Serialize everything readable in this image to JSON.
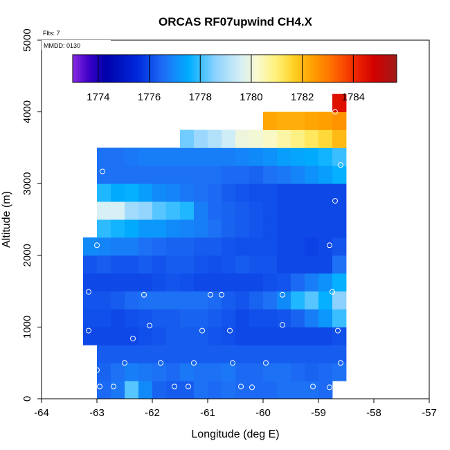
{
  "chart_data": {
    "type": "heatmap",
    "title": "ORCAS RF07upwind CH4.X",
    "flights_label": "Flts: 7",
    "mmdd_label": "MMDD: 0130",
    "xlabel": "Longitude (deg E)",
    "ylabel": "Altitude (m)",
    "xlim": [
      -64,
      -57
    ],
    "ylim": [
      0,
      5000
    ],
    "xticks": [
      -64,
      -63,
      -62,
      -61,
      -60,
      -59,
      -58,
      -57
    ],
    "yticks": [
      0,
      1000,
      2000,
      3000,
      4000,
      5000
    ],
    "colorbar": {
      "range": [
        1773,
        1785.7
      ],
      "ticks": [
        1774,
        1776,
        1778,
        1780,
        1782,
        1784
      ]
    },
    "grid": {
      "x0": -63.25,
      "dx": 0.25,
      "dy": 250,
      "rows": [
        {
          "y0": 0,
          "x0": -63.0,
          "values": [
            1776.5,
            1776.7,
            1778.2,
            1777.0,
            1776.4,
            1776.3,
            1776.3,
            1776.6,
            1776.5,
            1776.6,
            1776.5,
            1776.5,
            1776.5,
            1776.6,
            1776.6,
            1776.6,
            1776.5
          ]
        },
        {
          "y0": 250,
          "x0": -63.0,
          "values": [
            1776.4,
            1776.6,
            1776.8,
            1776.7,
            1776.6,
            1776.5,
            1776.7,
            1776.6,
            1776.6,
            1776.7,
            1776.5,
            1776.5,
            1776.6,
            1776.6,
            1776.5,
            1776.4,
            1776.5,
            1776.6
          ]
        },
        {
          "y0": 500,
          "x0": -63.0,
          "values": [
            1776.3,
            1776.3,
            1776.3,
            1776.3,
            1776.3,
            1776.3,
            1776.3,
            1776.3,
            1776.3,
            1776.3,
            1776.3,
            1776.3,
            1776.3,
            1776.3,
            1776.3,
            1776.3,
            1776.3,
            1776.3
          ]
        },
        {
          "y0": 750,
          "x0": -63.25,
          "values": [
            1776.0,
            1776.0,
            1776.0,
            1776.0,
            1776.1,
            1776.2,
            1776.3,
            1776.3,
            1776.3,
            1776.2,
            1776.1,
            1776.0,
            1776.0,
            1776.0,
            1776.0,
            1776.0,
            1776.0,
            1776.0,
            1776.1
          ]
        },
        {
          "y0": 1000,
          "x0": -63.25,
          "values": [
            1776.1,
            1776.1,
            1776.0,
            1776.1,
            1776.2,
            1776.3,
            1776.3,
            1776.4,
            1776.4,
            1776.3,
            1776.2,
            1776.0,
            1776.1,
            1776.1,
            1776.2,
            1776.4,
            1776.8,
            1777.2,
            1778.0
          ]
        },
        {
          "y0": 1250,
          "x0": -63.25,
          "values": [
            1776.2,
            1776.2,
            1776.3,
            1776.5,
            1776.6,
            1776.6,
            1776.6,
            1776.6,
            1776.6,
            1776.5,
            1776.3,
            1776.2,
            1776.4,
            1776.6,
            1777.0,
            1777.8,
            1778.2,
            1777.6,
            1778.6
          ]
        },
        {
          "y0": 1500,
          "x0": -63.25,
          "values": [
            1776.0,
            1776.0,
            1776.0,
            1776.0,
            1776.0,
            1776.1,
            1776.2,
            1776.1,
            1776.0,
            1776.0,
            1776.0,
            1776.0,
            1776.0,
            1776.1,
            1776.2,
            1776.5,
            1776.8,
            1777.1,
            1777.6
          ]
        },
        {
          "y0": 1750,
          "x0": -63.25,
          "values": [
            1776.2,
            1776.3,
            1776.2,
            1776.2,
            1776.3,
            1776.2,
            1776.3,
            1776.3,
            1776.2,
            1776.1,
            1776.2,
            1776.3,
            1776.2,
            1776.2,
            1776.0,
            1776.0,
            1776.0,
            1776.0,
            1776.6
          ]
        },
        {
          "y0": 2000,
          "x0": -63.25,
          "values": [
            1777.0,
            1776.9,
            1776.8,
            1776.8,
            1776.6,
            1776.5,
            1776.4,
            1776.4,
            1776.3,
            1776.3,
            1776.2,
            1776.1,
            1776.1,
            1776.1,
            1776.0,
            1776.0,
            1775.9,
            1776.0,
            1776.2
          ]
        },
        {
          "y0": 2250,
          "x0": -63.0,
          "values": [
            1777.9,
            1777.7,
            1777.5,
            1777.2,
            1777.2,
            1777.0,
            1776.9,
            1776.8,
            1776.6,
            1776.4,
            1776.3,
            1776.2,
            1776.1,
            1776.0,
            1776.0,
            1776.0,
            1776.0,
            1776.0
          ]
        },
        {
          "y0": 2500,
          "x0": -63.0,
          "values": [
            1779.6,
            1779.6,
            1778.9,
            1778.7,
            1778.2,
            1778.0,
            1777.8,
            1776.8,
            1776.5,
            1776.4,
            1776.3,
            1776.2,
            1776.1,
            1776.0,
            1776.0,
            1776.0,
            1776.0,
            1776.0
          ]
        },
        {
          "y0": 2750,
          "x0": -63.0,
          "values": [
            1777.8,
            1777.5,
            1777.6,
            1777.3,
            1777.0,
            1776.9,
            1776.7,
            1776.6,
            1776.5,
            1776.3,
            1776.2,
            1776.1,
            1776.1,
            1776.0,
            1776.0,
            1776.0,
            1776.0,
            1776.0
          ]
        },
        {
          "y0": 3000,
          "x0": -63.0,
          "values": [
            1776.6,
            1776.6,
            1776.6,
            1776.6,
            1776.6,
            1776.6,
            1776.6,
            1776.6,
            1776.6,
            1776.5,
            1776.5,
            1776.4,
            1776.6,
            1776.7,
            1776.9,
            1777.1,
            1777.3,
            1777.6
          ]
        },
        {
          "y0": 3250,
          "x0": -63.0,
          "values": [
            1776.6,
            1776.6,
            1776.7,
            1776.8,
            1776.8,
            1776.8,
            1776.8,
            1776.8,
            1776.8,
            1776.8,
            1776.9,
            1777.0,
            1777.1,
            1777.3,
            1777.4,
            1777.5,
            1777.7,
            1778.0
          ]
        },
        {
          "y0": 3500,
          "x0": -61.5,
          "values": [
            1778.4,
            1778.8,
            1779.1,
            1779.5,
            1780.0,
            1780.1,
            1780.3,
            1780.6,
            1780.9,
            1781.2,
            1781.5,
            1782.0
          ]
        },
        {
          "y0": 3750,
          "x0": -60.0,
          "values": [
            1782.3,
            1782.2,
            1782.2,
            1782.3,
            1782.4,
            1782.6
          ]
        },
        {
          "y0": 4000,
          "x0": -58.75,
          "values": [
            1784.5
          ]
        }
      ]
    },
    "points": [
      [
        -62.9,
        3170
      ],
      [
        -58.6,
        3260
      ],
      [
        -58.7,
        2760
      ],
      [
        -63.0,
        2140
      ],
      [
        -58.8,
        2140
      ],
      [
        -63.15,
        1490
      ],
      [
        -62.15,
        1450
      ],
      [
        -60.95,
        1450
      ],
      [
        -60.75,
        1450
      ],
      [
        -59.65,
        1450
      ],
      [
        -58.75,
        1490
      ],
      [
        -62.05,
        1020
      ],
      [
        -59.65,
        1030
      ],
      [
        -63.15,
        950
      ],
      [
        -61.1,
        950
      ],
      [
        -60.6,
        950
      ],
      [
        -58.65,
        950
      ],
      [
        -62.35,
        840
      ],
      [
        -62.5,
        500
      ],
      [
        -61.85,
        500
      ],
      [
        -61.25,
        500
      ],
      [
        -60.55,
        500
      ],
      [
        -59.95,
        500
      ],
      [
        -58.6,
        500
      ],
      [
        -63.0,
        400
      ],
      [
        -62.95,
        170
      ],
      [
        -62.7,
        170
      ],
      [
        -61.6,
        170
      ],
      [
        -61.35,
        170
      ],
      [
        -60.4,
        170
      ],
      [
        -60.2,
        160
      ],
      [
        -59.1,
        170
      ],
      [
        -58.8,
        160
      ],
      [
        -58.7,
        4000
      ]
    ]
  }
}
